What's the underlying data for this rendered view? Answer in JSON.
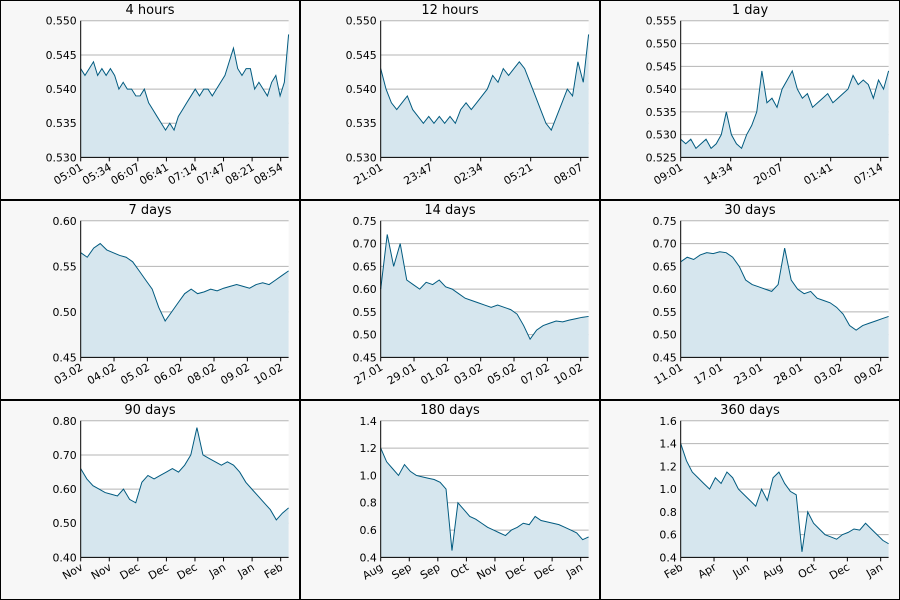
{
  "colors": {
    "line": "#005a7f",
    "fill": "#d6e6ee",
    "plot_bg": "#ffffff",
    "panel_bg": "#f7f7f7",
    "grid": "#b5b5b5"
  },
  "chart_data": [
    {
      "type": "area",
      "title": "4 hours",
      "ylim": [
        0.53,
        0.55
      ],
      "yticks": [
        "0.530",
        "0.535",
        "0.540",
        "0.545",
        "0.550"
      ],
      "xticks": [
        "05:01",
        "05:34",
        "06:07",
        "06:41",
        "07:14",
        "07:47",
        "08:21",
        "08:54"
      ],
      "y": [
        0.543,
        0.542,
        0.543,
        0.544,
        0.542,
        0.543,
        0.542,
        0.543,
        0.542,
        0.54,
        0.541,
        0.54,
        0.54,
        0.539,
        0.539,
        0.54,
        0.538,
        0.537,
        0.536,
        0.535,
        0.534,
        0.535,
        0.534,
        0.536,
        0.537,
        0.538,
        0.539,
        0.54,
        0.539,
        0.54,
        0.54,
        0.539,
        0.54,
        0.541,
        0.542,
        0.544,
        0.546,
        0.543,
        0.542,
        0.543,
        0.543,
        0.54,
        0.541,
        0.54,
        0.539,
        0.541,
        0.542,
        0.539,
        0.541,
        0.548
      ]
    },
    {
      "type": "area",
      "title": "12 hours",
      "ylim": [
        0.53,
        0.55
      ],
      "yticks": [
        "0.530",
        "0.535",
        "0.540",
        "0.545",
        "0.550"
      ],
      "xticks": [
        "21:01",
        "23:47",
        "02:34",
        "05:21",
        "08:07"
      ],
      "y": [
        0.543,
        0.54,
        0.538,
        0.537,
        0.538,
        0.539,
        0.537,
        0.536,
        0.535,
        0.536,
        0.535,
        0.536,
        0.535,
        0.536,
        0.535,
        0.537,
        0.538,
        0.537,
        0.538,
        0.539,
        0.54,
        0.542,
        0.541,
        0.543,
        0.542,
        0.543,
        0.544,
        0.543,
        0.541,
        0.539,
        0.537,
        0.535,
        0.534,
        0.536,
        0.538,
        0.54,
        0.539,
        0.544,
        0.541,
        0.548
      ]
    },
    {
      "type": "area",
      "title": "1 day",
      "ylim": [
        0.525,
        0.555
      ],
      "yticks": [
        "0.525",
        "0.530",
        "0.535",
        "0.540",
        "0.545",
        "0.550",
        "0.555"
      ],
      "xticks": [
        "09:01",
        "14:34",
        "20:07",
        "01:41",
        "07:14"
      ],
      "y": [
        0.529,
        0.528,
        0.529,
        0.527,
        0.528,
        0.529,
        0.527,
        0.528,
        0.53,
        0.535,
        0.53,
        0.528,
        0.527,
        0.53,
        0.532,
        0.535,
        0.544,
        0.537,
        0.538,
        0.536,
        0.54,
        0.542,
        0.544,
        0.54,
        0.538,
        0.539,
        0.536,
        0.537,
        0.538,
        0.539,
        0.537,
        0.538,
        0.539,
        0.54,
        0.543,
        0.541,
        0.542,
        0.541,
        0.538,
        0.542,
        0.54,
        0.544
      ]
    },
    {
      "type": "area",
      "title": "7 days",
      "ylim": [
        0.45,
        0.6
      ],
      "yticks": [
        "0.45",
        "0.50",
        "0.55",
        "0.60"
      ],
      "xticks": [
        "03.02",
        "04.02",
        "05.02",
        "06.02",
        "08.02",
        "09.02",
        "10.02"
      ],
      "y": [
        0.565,
        0.56,
        0.57,
        0.575,
        0.568,
        0.565,
        0.562,
        0.56,
        0.555,
        0.545,
        0.535,
        0.525,
        0.505,
        0.49,
        0.5,
        0.51,
        0.52,
        0.525,
        0.52,
        0.522,
        0.525,
        0.523,
        0.526,
        0.528,
        0.53,
        0.528,
        0.526,
        0.53,
        0.532,
        0.53,
        0.535,
        0.54,
        0.545
      ]
    },
    {
      "type": "area",
      "title": "14 days",
      "ylim": [
        0.45,
        0.75
      ],
      "yticks": [
        "0.45",
        "0.50",
        "0.55",
        "0.60",
        "0.65",
        "0.70",
        "0.75"
      ],
      "xticks": [
        "27.01",
        "29.01",
        "01.02",
        "03.02",
        "05.02",
        "07.02",
        "10.02"
      ],
      "y": [
        0.6,
        0.72,
        0.65,
        0.7,
        0.62,
        0.61,
        0.6,
        0.615,
        0.61,
        0.62,
        0.605,
        0.6,
        0.59,
        0.58,
        0.575,
        0.57,
        0.565,
        0.56,
        0.565,
        0.56,
        0.555,
        0.545,
        0.52,
        0.49,
        0.51,
        0.52,
        0.525,
        0.53,
        0.528,
        0.532,
        0.535,
        0.538,
        0.54
      ]
    },
    {
      "type": "area",
      "title": "30 days",
      "ylim": [
        0.45,
        0.75
      ],
      "yticks": [
        "0.45",
        "0.50",
        "0.55",
        "0.60",
        "0.65",
        "0.70",
        "0.75"
      ],
      "xticks": [
        "11.01",
        "17.01",
        "23.01",
        "28.01",
        "03.02",
        "09.02"
      ],
      "y": [
        0.66,
        0.67,
        0.665,
        0.675,
        0.68,
        0.678,
        0.682,
        0.68,
        0.67,
        0.65,
        0.62,
        0.61,
        0.605,
        0.6,
        0.595,
        0.61,
        0.69,
        0.62,
        0.6,
        0.59,
        0.595,
        0.58,
        0.575,
        0.57,
        0.56,
        0.545,
        0.52,
        0.51,
        0.52,
        0.525,
        0.53,
        0.535,
        0.54
      ]
    },
    {
      "type": "area",
      "title": "90 days",
      "ylim": [
        0.4,
        0.8
      ],
      "yticks": [
        "0.40",
        "0.50",
        "0.60",
        "0.70",
        "0.80"
      ],
      "xticks": [
        "Nov",
        "Nov",
        "Dec",
        "Dec",
        "Dec",
        "Jan",
        "Jan",
        "Feb"
      ],
      "y": [
        0.66,
        0.63,
        0.61,
        0.6,
        0.59,
        0.585,
        0.58,
        0.6,
        0.57,
        0.56,
        0.62,
        0.64,
        0.63,
        0.64,
        0.65,
        0.66,
        0.65,
        0.67,
        0.7,
        0.78,
        0.7,
        0.69,
        0.68,
        0.67,
        0.68,
        0.67,
        0.65,
        0.62,
        0.6,
        0.58,
        0.56,
        0.54,
        0.51,
        0.53,
        0.545
      ]
    },
    {
      "type": "area",
      "title": "180 days",
      "ylim": [
        0.4,
        1.4
      ],
      "yticks": [
        "0.4",
        "0.6",
        "0.8",
        "1.0",
        "1.2",
        "1.4"
      ],
      "xticks": [
        "Aug",
        "Sep",
        "Sep",
        "Oct",
        "Nov",
        "Dec",
        "Dec",
        "Jan"
      ],
      "y": [
        1.2,
        1.1,
        1.05,
        1.0,
        1.08,
        1.03,
        1.0,
        0.99,
        0.98,
        0.97,
        0.95,
        0.9,
        0.45,
        0.8,
        0.75,
        0.7,
        0.68,
        0.65,
        0.62,
        0.6,
        0.58,
        0.56,
        0.6,
        0.62,
        0.65,
        0.64,
        0.7,
        0.67,
        0.66,
        0.65,
        0.64,
        0.62,
        0.6,
        0.58,
        0.53,
        0.55
      ]
    },
    {
      "type": "area",
      "title": "360 days",
      "ylim": [
        0.4,
        1.6
      ],
      "yticks": [
        "0.4",
        "0.6",
        "0.8",
        "1.0",
        "1.2",
        "1.4",
        "1.6"
      ],
      "xticks": [
        "Feb",
        "Apr",
        "Jun",
        "Aug",
        "Oct",
        "Dec",
        "Jan"
      ],
      "y": [
        1.4,
        1.25,
        1.15,
        1.1,
        1.05,
        1.0,
        1.1,
        1.05,
        1.15,
        1.1,
        1.0,
        0.95,
        0.9,
        0.85,
        1.0,
        0.9,
        1.1,
        1.15,
        1.05,
        0.98,
        0.95,
        0.45,
        0.8,
        0.7,
        0.65,
        0.6,
        0.58,
        0.56,
        0.6,
        0.62,
        0.65,
        0.64,
        0.7,
        0.65,
        0.6,
        0.55,
        0.52
      ]
    }
  ]
}
